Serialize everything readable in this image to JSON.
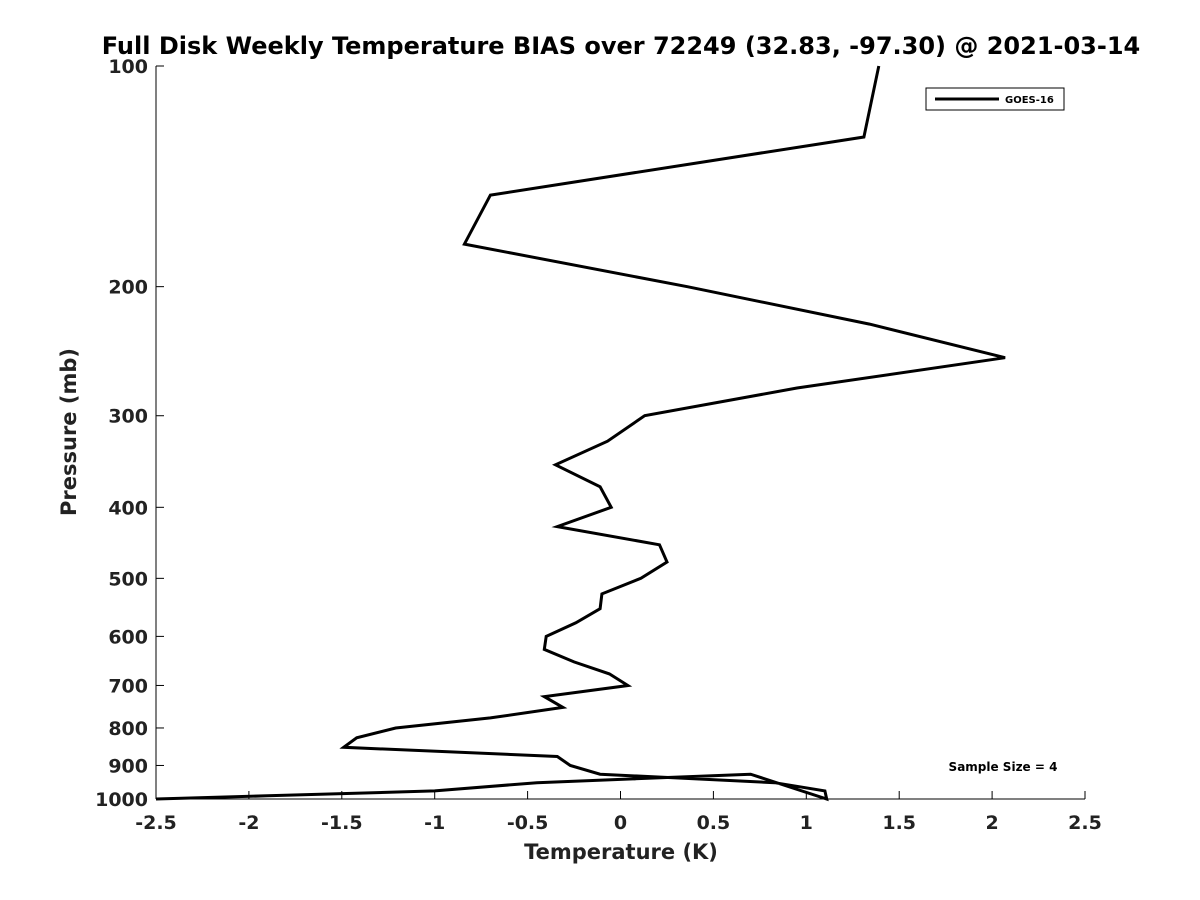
{
  "chart_data": {
    "type": "line",
    "title": "Full Disk Weekly Temperature BIAS over 72249 (32.83, -97.30) @ 2021-03-14",
    "xlabel": "Temperature (K)",
    "ylabel": "Pressure (mb)",
    "xlim": [
      -2.5,
      2.5
    ],
    "ylim": [
      100,
      1000
    ],
    "y_scale": "log",
    "y_reversed": true,
    "grid": false,
    "legend_placement": "top-right",
    "x_ticks": [
      "-2.5",
      "-2",
      "-1.5",
      "-1",
      "-0.5",
      "0",
      "0.5",
      "1",
      "1.5",
      "2",
      "2.5"
    ],
    "y_ticks": [
      "100",
      "200",
      "300",
      "400",
      "500",
      "600",
      "700",
      "800",
      "900",
      "1000"
    ],
    "series": [
      {
        "name": "GOES-16",
        "color": "#000000",
        "points": [
          {
            "t": 1.39,
            "p": 100
          },
          {
            "t": 1.31,
            "p": 125
          },
          {
            "t": -0.7,
            "p": 150
          },
          {
            "t": -0.84,
            "p": 175
          },
          {
            "t": 0.36,
            "p": 200
          },
          {
            "t": 1.34,
            "p": 225
          },
          {
            "t": 2.07,
            "p": 250
          },
          {
            "t": 0.95,
            "p": 275
          },
          {
            "t": 0.13,
            "p": 300
          },
          {
            "t": -0.07,
            "p": 325
          },
          {
            "t": -0.35,
            "p": 350
          },
          {
            "t": -0.11,
            "p": 375
          },
          {
            "t": -0.05,
            "p": 400
          },
          {
            "t": -0.34,
            "p": 425
          },
          {
            "t": 0.21,
            "p": 450
          },
          {
            "t": 0.25,
            "p": 475
          },
          {
            "t": 0.11,
            "p": 500
          },
          {
            "t": -0.1,
            "p": 525
          },
          {
            "t": -0.11,
            "p": 550
          },
          {
            "t": -0.24,
            "p": 575
          },
          {
            "t": -0.4,
            "p": 600
          },
          {
            "t": -0.41,
            "p": 625
          },
          {
            "t": -0.25,
            "p": 650
          },
          {
            "t": -0.06,
            "p": 675
          },
          {
            "t": 0.04,
            "p": 700
          },
          {
            "t": -0.41,
            "p": 725
          },
          {
            "t": -0.31,
            "p": 750
          },
          {
            "t": -0.7,
            "p": 775
          },
          {
            "t": -1.21,
            "p": 800
          },
          {
            "t": -1.42,
            "p": 825
          },
          {
            "t": -1.49,
            "p": 850
          },
          {
            "t": -0.34,
            "p": 875
          },
          {
            "t": -0.27,
            "p": 900
          },
          {
            "t": -0.11,
            "p": 925
          },
          {
            "t": 0.83,
            "p": 950
          },
          {
            "t": 1.1,
            "p": 975
          },
          {
            "t": 1.11,
            "p": 1000
          },
          {
            "t": 0.7,
            "p": 925
          },
          {
            "t": -0.45,
            "p": 950
          },
          {
            "t": -1.0,
            "p": 975
          },
          {
            "t": -1.9,
            "p": 990
          },
          {
            "t": -2.5,
            "p": 1000
          }
        ]
      }
    ],
    "annotation": "Sample Size = 4"
  }
}
